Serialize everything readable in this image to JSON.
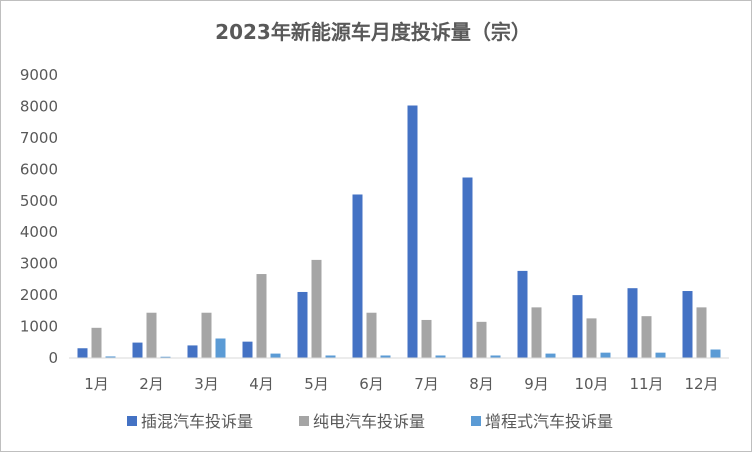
{
  "chart_data": {
    "type": "bar",
    "title": "2023年新能源车月度投诉量（宗）",
    "categories": [
      "1月",
      "2月",
      "3月",
      "4月",
      "5月",
      "6月",
      "7月",
      "8月",
      "9月",
      "10月",
      "11月",
      "12月"
    ],
    "series": [
      {
        "name": "插混汽车投诉量",
        "color": "#4472c4",
        "values": [
          310,
          490,
          400,
          520,
          2100,
          5200,
          8030,
          5740,
          2770,
          2000,
          2220,
          2130
        ]
      },
      {
        "name": "纯电汽车投诉量",
        "color": "#a5a5a5",
        "values": [
          960,
          1440,
          1440,
          2670,
          3120,
          1440,
          1210,
          1150,
          1610,
          1260,
          1330,
          1610
        ]
      },
      {
        "name": "增程式汽车投诉量",
        "color": "#5b9bd5",
        "values": [
          50,
          40,
          620,
          140,
          80,
          80,
          80,
          80,
          140,
          170,
          170,
          270
        ]
      }
    ],
    "ylim": [
      0,
      9000
    ],
    "yticks": [
      0,
      1000,
      2000,
      3000,
      4000,
      5000,
      6000,
      7000,
      8000,
      9000
    ],
    "grid": false,
    "legend": "bottom"
  }
}
